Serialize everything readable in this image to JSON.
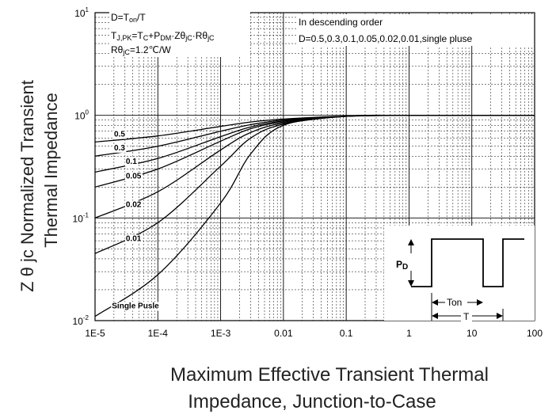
{
  "chart_data": {
    "type": "line",
    "title": "",
    "ylabel_line1": "Z θ jc   Normalized Transient",
    "ylabel_line2": "Thermal   Impedance",
    "xlabel_line1": "Maximum Effective Transient Thermal",
    "xlabel_line2": "Impedance, Junction-to-Case",
    "x_scale": "log",
    "y_scale": "log",
    "xlim": [
      1e-05,
      100
    ],
    "ylim": [
      0.01,
      10
    ],
    "x_ticks": [
      1e-05,
      0.0001,
      0.001,
      0.01,
      0.1,
      1,
      10,
      100
    ],
    "x_tick_labels": [
      "1E-5",
      "1E-4",
      "1E-3",
      "0.01",
      "0.1",
      "1",
      "10",
      "100"
    ],
    "y_ticks": [
      0.01,
      0.1,
      1,
      10
    ],
    "y_tick_bases": [
      "10",
      "10",
      "10",
      "10"
    ],
    "y_tick_exps": [
      "-2",
      "-1",
      "0",
      "1"
    ],
    "grid": true,
    "notes": {
      "left": [
        "D=T",
        "on",
        "/T",
        "T",
        "J,PK",
        "=T",
        "C",
        "+P",
        "DM",
        "·Zθ",
        "jC",
        "·Rθ",
        "jC",
        "Rθ",
        "jC",
        "=1.2℃/W"
      ],
      "right_line1": "In descending order",
      "right_line2": "D=0.5,0.3,0.1,0.05,0.02,0.01,single pluse"
    },
    "series": [
      {
        "name": "0.5",
        "x": [
          1e-05,
          0.0001,
          0.001,
          0.003,
          0.01,
          0.1,
          1,
          100
        ],
        "y": [
          0.55,
          0.63,
          0.78,
          0.86,
          0.92,
          0.98,
          1.0,
          1.0
        ]
      },
      {
        "name": "0.3",
        "x": [
          1e-05,
          0.0001,
          0.001,
          0.003,
          0.01,
          0.1,
          1,
          100
        ],
        "y": [
          0.4,
          0.5,
          0.7,
          0.81,
          0.9,
          0.98,
          1.0,
          1.0
        ]
      },
      {
        "name": "0.1",
        "x": [
          1e-05,
          0.0001,
          0.001,
          0.003,
          0.01,
          0.1,
          1,
          100
        ],
        "y": [
          0.28,
          0.38,
          0.62,
          0.77,
          0.88,
          0.98,
          1.0,
          1.0
        ]
      },
      {
        "name": "0.05",
        "x": [
          1e-05,
          0.0001,
          0.001,
          0.003,
          0.01,
          0.1,
          1,
          100
        ],
        "y": [
          0.2,
          0.3,
          0.56,
          0.74,
          0.86,
          0.98,
          1.0,
          1.0
        ]
      },
      {
        "name": "0.02",
        "x": [
          1e-05,
          0.0001,
          0.001,
          0.003,
          0.01,
          0.1,
          1,
          100
        ],
        "y": [
          0.1,
          0.18,
          0.46,
          0.68,
          0.84,
          0.98,
          1.0,
          1.0
        ]
      },
      {
        "name": "0.01",
        "x": [
          1e-05,
          0.0001,
          0.001,
          0.003,
          0.01,
          0.1,
          1,
          100
        ],
        "y": [
          0.045,
          0.09,
          0.32,
          0.6,
          0.82,
          0.98,
          1.0,
          1.0
        ]
      },
      {
        "name": "Single Pusle",
        "x": [
          1e-05,
          0.0001,
          0.001,
          0.003,
          0.01,
          0.1,
          1,
          100
        ],
        "y": [
          0.011,
          0.028,
          0.14,
          0.42,
          0.8,
          0.98,
          1.0,
          1.0
        ]
      }
    ],
    "series_labels": [
      "0.5",
      "0.3",
      "0.1",
      "0.05",
      "0.02",
      "0.01",
      "Single Pusle"
    ],
    "inset": {
      "pd_main": "P",
      "pd_sub": "D",
      "ton": "Ton",
      "t": "T"
    },
    "colors": {
      "lines": "#000000",
      "grid": "#000000",
      "background": "#ffffff"
    }
  }
}
